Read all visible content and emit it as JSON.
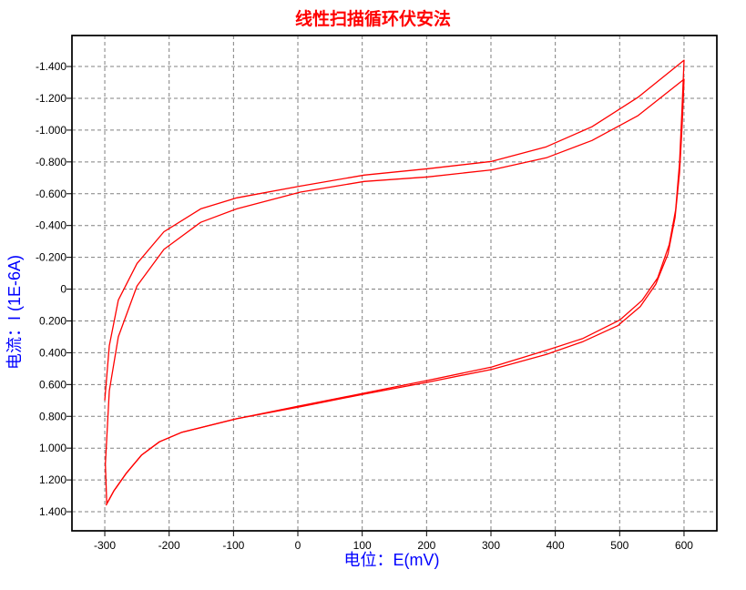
{
  "chart_data": {
    "type": "line",
    "title": "线性扫描循环伏安法",
    "xlabel": "电位：E(mV)",
    "ylabel": "电流：I (1E-6A)",
    "xlim": [
      -351,
      651
    ],
    "ylim": [
      -1.595,
      1.52
    ],
    "y_inverted": true,
    "grid": true,
    "line_color": "#ff0000",
    "x_ticks": [
      "-300",
      "-200",
      "-100",
      "0",
      "100",
      "200",
      "300",
      "400",
      "500",
      "600"
    ],
    "y_ticks": [
      "-1.400",
      "-1.200",
      "-1.000",
      "-0.800",
      "-0.600",
      "-0.400",
      "-0.200",
      "0",
      "0.200",
      "0.400",
      "0.600",
      "0.800",
      "1.000",
      "1.200",
      "1.400"
    ],
    "series": [
      {
        "points": [
          [
            -300,
            0.7
          ],
          [
            -293,
            0.356
          ],
          [
            -279,
            0.069
          ],
          [
            -250,
            -0.161
          ],
          [
            -208,
            -0.361
          ],
          [
            -151,
            -0.505
          ],
          [
            -95,
            -0.574
          ],
          [
            4,
            -0.648
          ],
          [
            103,
            -0.717
          ],
          [
            202,
            -0.757
          ],
          [
            301,
            -0.803
          ],
          [
            386,
            -0.895
          ],
          [
            457,
            -1.021
          ],
          [
            528,
            -1.205
          ],
          [
            600,
            -1.44
          ],
          [
            597,
            -1.14
          ],
          [
            593,
            -0.79
          ],
          [
            587,
            -0.5
          ],
          [
            577,
            -0.28
          ],
          [
            559,
            -0.07
          ],
          [
            535,
            0.07
          ],
          [
            500,
            0.195
          ],
          [
            443,
            0.31
          ],
          [
            386,
            0.385
          ],
          [
            301,
            0.49
          ],
          [
            202,
            0.574
          ],
          [
            103,
            0.654
          ],
          [
            4,
            0.734
          ],
          [
            -95,
            0.815
          ],
          [
            -180,
            0.9
          ],
          [
            -215,
            0.96
          ],
          [
            -243,
            1.044
          ],
          [
            -267,
            1.16
          ],
          [
            -286,
            1.27
          ],
          [
            -297,
            1.35
          ]
        ]
      },
      {
        "points": [
          [
            -297,
            1.35
          ],
          [
            -299,
            1.1
          ],
          [
            -293,
            0.64
          ],
          [
            -279,
            0.3
          ],
          [
            -250,
            -0.02
          ],
          [
            -208,
            -0.25
          ],
          [
            -151,
            -0.42
          ],
          [
            -95,
            -0.505
          ],
          [
            4,
            -0.61
          ],
          [
            103,
            -0.677
          ],
          [
            202,
            -0.706
          ],
          [
            301,
            -0.75
          ],
          [
            386,
            -0.826
          ],
          [
            457,
            -0.935
          ],
          [
            528,
            -1.09
          ],
          [
            600,
            -1.32
          ],
          [
            597,
            -1.02
          ],
          [
            593,
            -0.73
          ],
          [
            586,
            -0.45
          ],
          [
            575,
            -0.22
          ],
          [
            556,
            -0.03
          ],
          [
            532,
            0.11
          ],
          [
            497,
            0.23
          ],
          [
            443,
            0.33
          ],
          [
            386,
            0.41
          ],
          [
            301,
            0.505
          ],
          [
            202,
            0.585
          ],
          [
            103,
            0.66
          ],
          [
            4,
            0.74
          ],
          [
            -95,
            0.815
          ],
          [
            -180,
            0.9
          ],
          [
            -215,
            0.96
          ],
          [
            -243,
            1.044
          ],
          [
            -267,
            1.16
          ],
          [
            -286,
            1.27
          ],
          [
            -298,
            1.36
          ]
        ]
      }
    ]
  }
}
